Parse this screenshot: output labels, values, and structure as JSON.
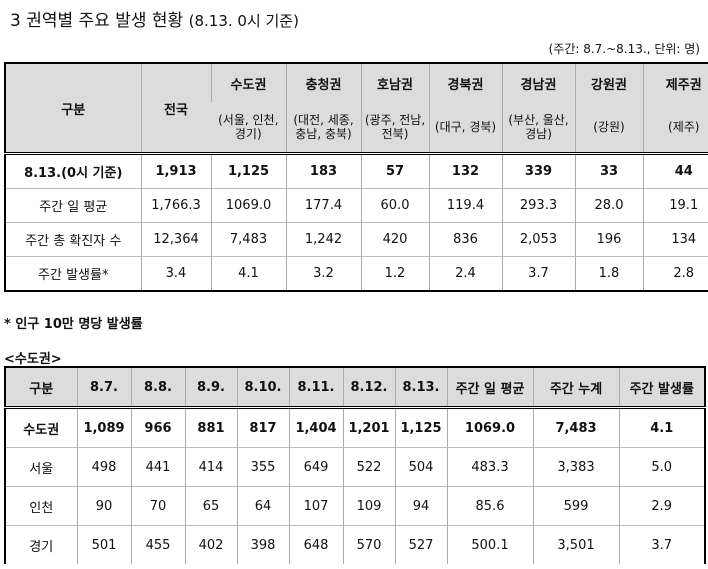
{
  "title": "3 권역별 주요 발생 현황",
  "title_sub": "(8.13. 0시 기준)",
  "unit_note": "(주간: 8.7.~8.13., 단위: 명)",
  "table1": {
    "corner": "구분",
    "national": "전국",
    "regions": [
      {
        "name": "수도권",
        "sub": "(서울, 인천, 경기)"
      },
      {
        "name": "충청권",
        "sub": "(대전, 세종, 충남, 충북)"
      },
      {
        "name": "호남권",
        "sub": "(광주, 전남, 전북)"
      },
      {
        "name": "경북권",
        "sub": "(대구, 경북)"
      },
      {
        "name": "경남권",
        "sub": "(부산, 울산, 경남)"
      },
      {
        "name": "강원권",
        "sub": "(강원)"
      },
      {
        "name": "제주권",
        "sub": "(제주)"
      }
    ],
    "rows": [
      {
        "label": "8.13.(0시 기준)",
        "values": [
          "1,913",
          "1,125",
          "183",
          "57",
          "132",
          "339",
          "33",
          "44"
        ]
      },
      {
        "label": "주간 일 평균",
        "values": [
          "1,766.3",
          "1069.0",
          "177.4",
          "60.0",
          "119.4",
          "293.3",
          "28.0",
          "19.1"
        ]
      },
      {
        "label": "주간 총 확진자 수",
        "values": [
          "12,364",
          "7,483",
          "1,242",
          "420",
          "836",
          "2,053",
          "196",
          "134"
        ]
      },
      {
        "label": "주간 발생률*",
        "values": [
          "3.4",
          "4.1",
          "3.2",
          "1.2",
          "2.4",
          "3.7",
          "1.8",
          "2.8"
        ]
      }
    ]
  },
  "footnote": "* 인구 10만 명당 발생률",
  "section_label": "<수도권>",
  "table2": {
    "headers": [
      "구분",
      "8.7.",
      "8.8.",
      "8.9.",
      "8.10.",
      "8.11.",
      "8.12.",
      "8.13.",
      "주간 일 평균",
      "주간 누계",
      "주간 발생률"
    ],
    "rows": [
      {
        "values": [
          "수도권",
          "1,089",
          "966",
          "881",
          "817",
          "1,404",
          "1,201",
          "1,125",
          "1069.0",
          "7,483",
          "4.1"
        ]
      },
      {
        "values": [
          "서울",
          "498",
          "441",
          "414",
          "355",
          "649",
          "522",
          "504",
          "483.3",
          "3,383",
          "5.0"
        ]
      },
      {
        "values": [
          "인천",
          "90",
          "70",
          "65",
          "64",
          "107",
          "109",
          "94",
          "85.6",
          "599",
          "2.9"
        ]
      },
      {
        "values": [
          "경기",
          "501",
          "455",
          "402",
          "398",
          "648",
          "570",
          "527",
          "500.1",
          "3,501",
          "3.7"
        ]
      }
    ]
  }
}
